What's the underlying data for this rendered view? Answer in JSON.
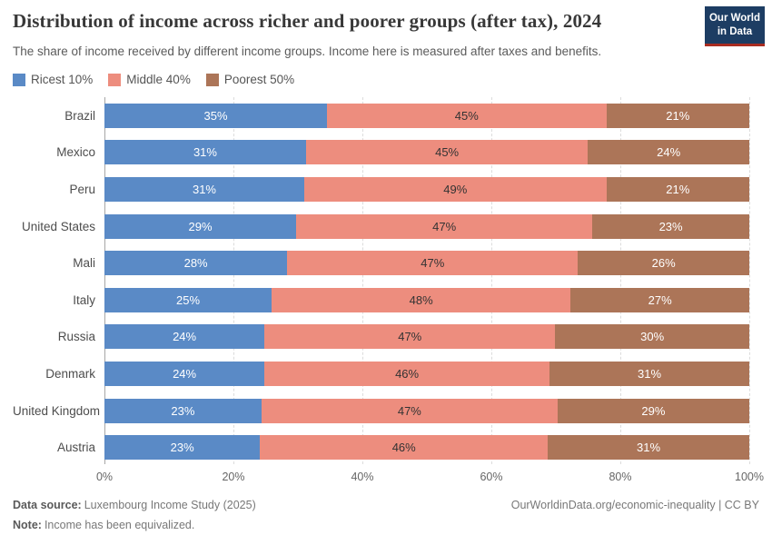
{
  "header": {
    "title": "Distribution of income across richer and poorer groups (after tax), 2024",
    "subtitle": "The share of income received by different income groups. Income here is measured after taxes and benefits.",
    "logo_line1": "Our World",
    "logo_line2": "in Data"
  },
  "colors": {
    "richest_blue": "#5a8ac6",
    "middle_salmon": "#ed8d7e",
    "poorest_brown": "#ac7558",
    "logo_bg": "#1d3d63",
    "logo_accent": "#a92c21"
  },
  "legend": [
    {
      "label": "Ricest 10%",
      "color": "#5a8ac6"
    },
    {
      "label": "Middle 40%",
      "color": "#ed8d7e"
    },
    {
      "label": "Poorest 50%",
      "color": "#ac7558"
    }
  ],
  "chart_data": {
    "type": "bar",
    "stacked": true,
    "orientation": "horizontal",
    "title": "Distribution of income across richer and poorer groups (after tax), 2024",
    "xlabel": "",
    "ylabel": "",
    "xlim": [
      0,
      100
    ],
    "grid": "vertical-dashed",
    "legend_position": "top-left",
    "value_suffix": "%",
    "categories": [
      "Brazil",
      "Mexico",
      "Peru",
      "United States",
      "Mali",
      "Italy",
      "Russia",
      "Denmark",
      "United Kingdom",
      "Austria"
    ],
    "series": [
      {
        "name": "Ricest 10%",
        "color": "#5a8ac6",
        "label_color": "#ffffff",
        "values": [
          35,
          31,
          31,
          29,
          28,
          25,
          24,
          24,
          23,
          23
        ]
      },
      {
        "name": "Middle 40%",
        "color": "#ed8d7e",
        "label_color": "#333333",
        "values": [
          45,
          45,
          49,
          47,
          47,
          48,
          47,
          46,
          47,
          46
        ]
      },
      {
        "name": "Poorest 50%",
        "color": "#ac7558",
        "label_color": "#ffffff",
        "values": [
          21,
          24,
          21,
          23,
          26,
          27,
          30,
          31,
          29,
          31
        ]
      }
    ],
    "x_ticks": [
      0,
      20,
      40,
      60,
      80,
      100
    ],
    "x_tick_labels": [
      "0%",
      "20%",
      "40%",
      "60%",
      "80%",
      "100%"
    ]
  },
  "footer": {
    "source_label": "Data source:",
    "source_text": "Luxembourg Income Study (2025)",
    "note_label": "Note:",
    "note_text": "Income has been equivalized.",
    "rights": "OurWorldinData.org/economic-inequality | CC BY"
  }
}
